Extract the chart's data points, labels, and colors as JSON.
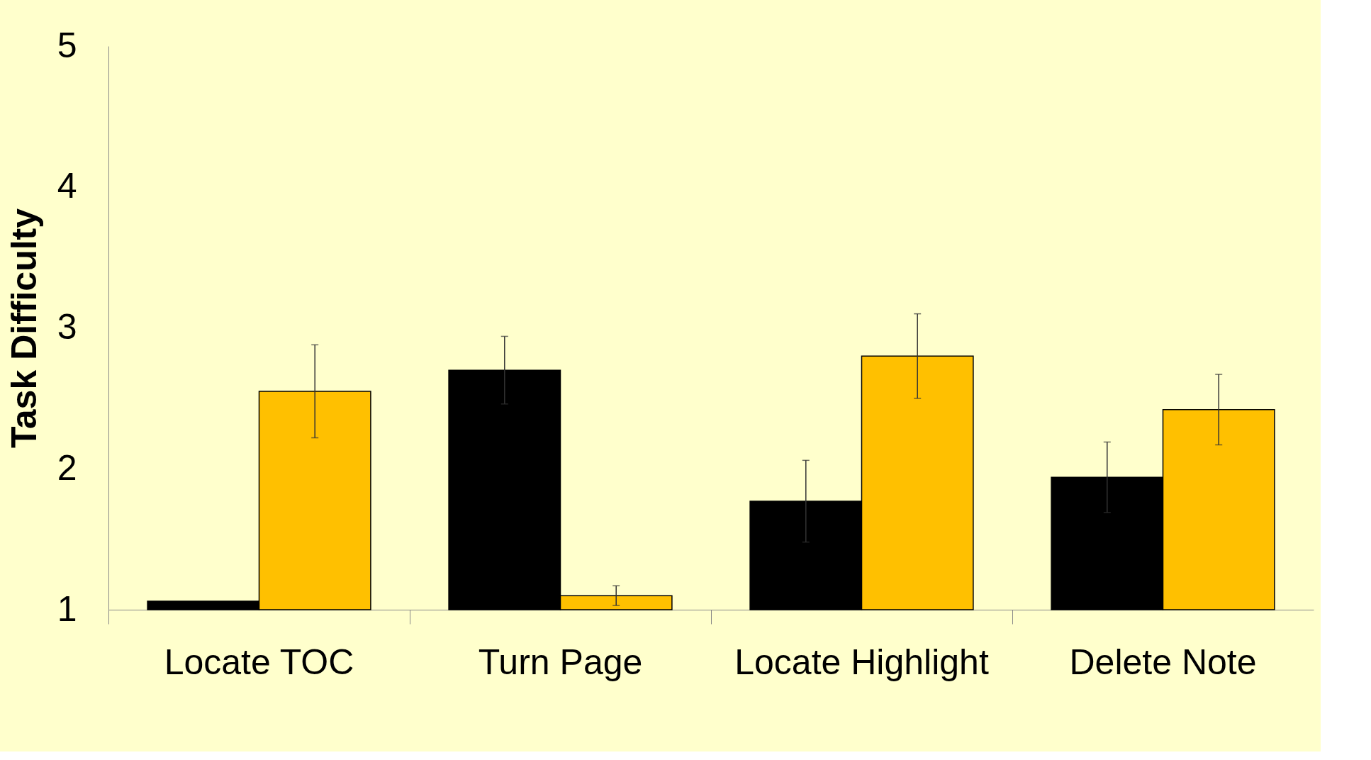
{
  "chart_data": {
    "type": "bar",
    "ylabel": "Task Difficulty",
    "categories": [
      "Locate TOC",
      "Turn Page",
      "Locate Highlight",
      "Delete Note"
    ],
    "series": [
      {
        "color": "#000000",
        "values": [
          1.06,
          2.7,
          1.77,
          1.94
        ],
        "errors": [
          null,
          0.24,
          0.29,
          0.25
        ]
      },
      {
        "color": "#ffc000",
        "values": [
          2.55,
          1.1,
          2.8,
          2.42
        ],
        "errors": [
          0.33,
          0.07,
          0.3,
          0.25
        ]
      }
    ],
    "ylim": [
      1,
      5
    ],
    "yticks": [
      1,
      2,
      3,
      4,
      5
    ],
    "grid": false,
    "legend": false
  }
}
